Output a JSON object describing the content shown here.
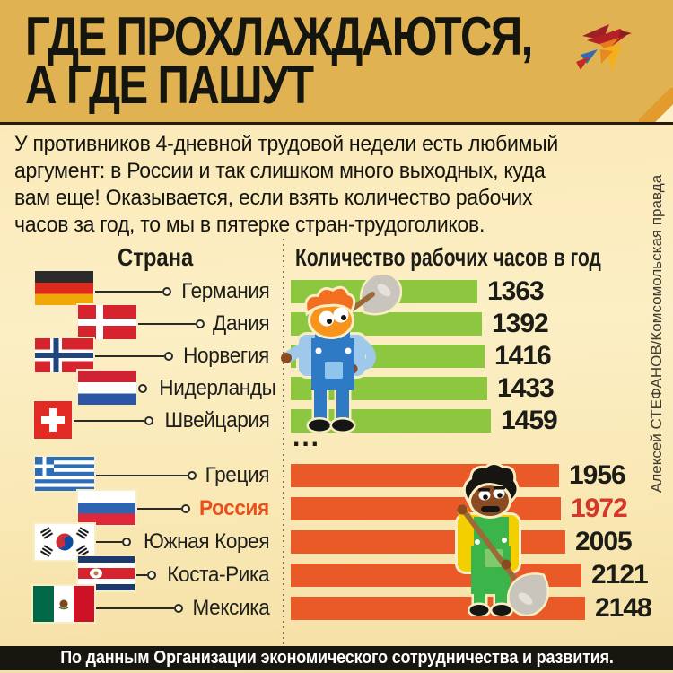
{
  "title": {
    "line1": "ГДЕ ПРОХЛАЖДАЮТСЯ,",
    "line2": "А ГДЕ ПАШУТ"
  },
  "logo": "kp-bird",
  "intro": "У противников 4-дневной трудовой недели есть любимый\nаргумент: в России и так слишком много выходных, куда\nвам еще! Оказывается, если взять количество рабочих\nчасов за год, то мы в пятерке стран-трудоголиков.",
  "credit": "Алексей СТЕФАНОВ/Комсомольская правда",
  "columns": {
    "country": "Страна",
    "hours": "Количество рабочих часов в год"
  },
  "separator": "...",
  "countries": [
    {
      "name": "Германия",
      "value": 1363,
      "flag": "germany",
      "group": "low"
    },
    {
      "name": "Дания",
      "value": 1392,
      "flag": "denmark",
      "group": "low"
    },
    {
      "name": "Норвегия",
      "value": 1416,
      "flag": "norway",
      "group": "low"
    },
    {
      "name": "Нидерланды",
      "value": 1433,
      "flag": "netherlands",
      "group": "low"
    },
    {
      "name": "Швейцария",
      "value": 1459,
      "flag": "switzerland",
      "group": "low"
    },
    {
      "name": "Греция",
      "value": 1956,
      "flag": "greece",
      "group": "high"
    },
    {
      "name": "Россия",
      "value": 1972,
      "flag": "russia",
      "group": "high",
      "highlight": true
    },
    {
      "name": "Южная Корея",
      "value": 2005,
      "flag": "south-korea",
      "group": "high"
    },
    {
      "name": "Коста-Рика",
      "value": 2121,
      "flag": "costa-rica",
      "group": "high"
    },
    {
      "name": "Мексика",
      "value": 2148,
      "flag": "mexico",
      "group": "high"
    }
  ],
  "footer": "По данным Организации экономического сотрудничества и развития.",
  "colors": {
    "header_bg": "#e0b251",
    "bar_low": "#8dc63f",
    "bar_high": "#ea5a28",
    "value_text": "#1d1d18",
    "highlight_value": "#d6372b",
    "russia_label": "#e8511c",
    "outline_cream": "#f9edc3",
    "footer_bg": "#17160f",
    "footer_text": "#ffffff"
  },
  "chart_data": {
    "type": "bar",
    "orientation": "horizontal",
    "title": "ГДЕ ПРОХЛАЖДАЮТСЯ, А ГДЕ ПАШУТ",
    "xlabel": "Количество рабочих часов в год",
    "categories": [
      "Германия",
      "Дания",
      "Норвегия",
      "Нидерланды",
      "Швейцария",
      "Греция",
      "Россия",
      "Южная Корея",
      "Коста-Рика",
      "Мексика"
    ],
    "values": [
      1363,
      1392,
      1416,
      1433,
      1459,
      1956,
      1972,
      2005,
      2121,
      2148
    ],
    "series_group": [
      "low",
      "low",
      "low",
      "low",
      "low",
      "high",
      "high",
      "high",
      "high",
      "high"
    ],
    "highlighted_category": "Россия",
    "legend": false,
    "grid": false,
    "source": "По данным Организации экономического сотрудничества и развития."
  }
}
